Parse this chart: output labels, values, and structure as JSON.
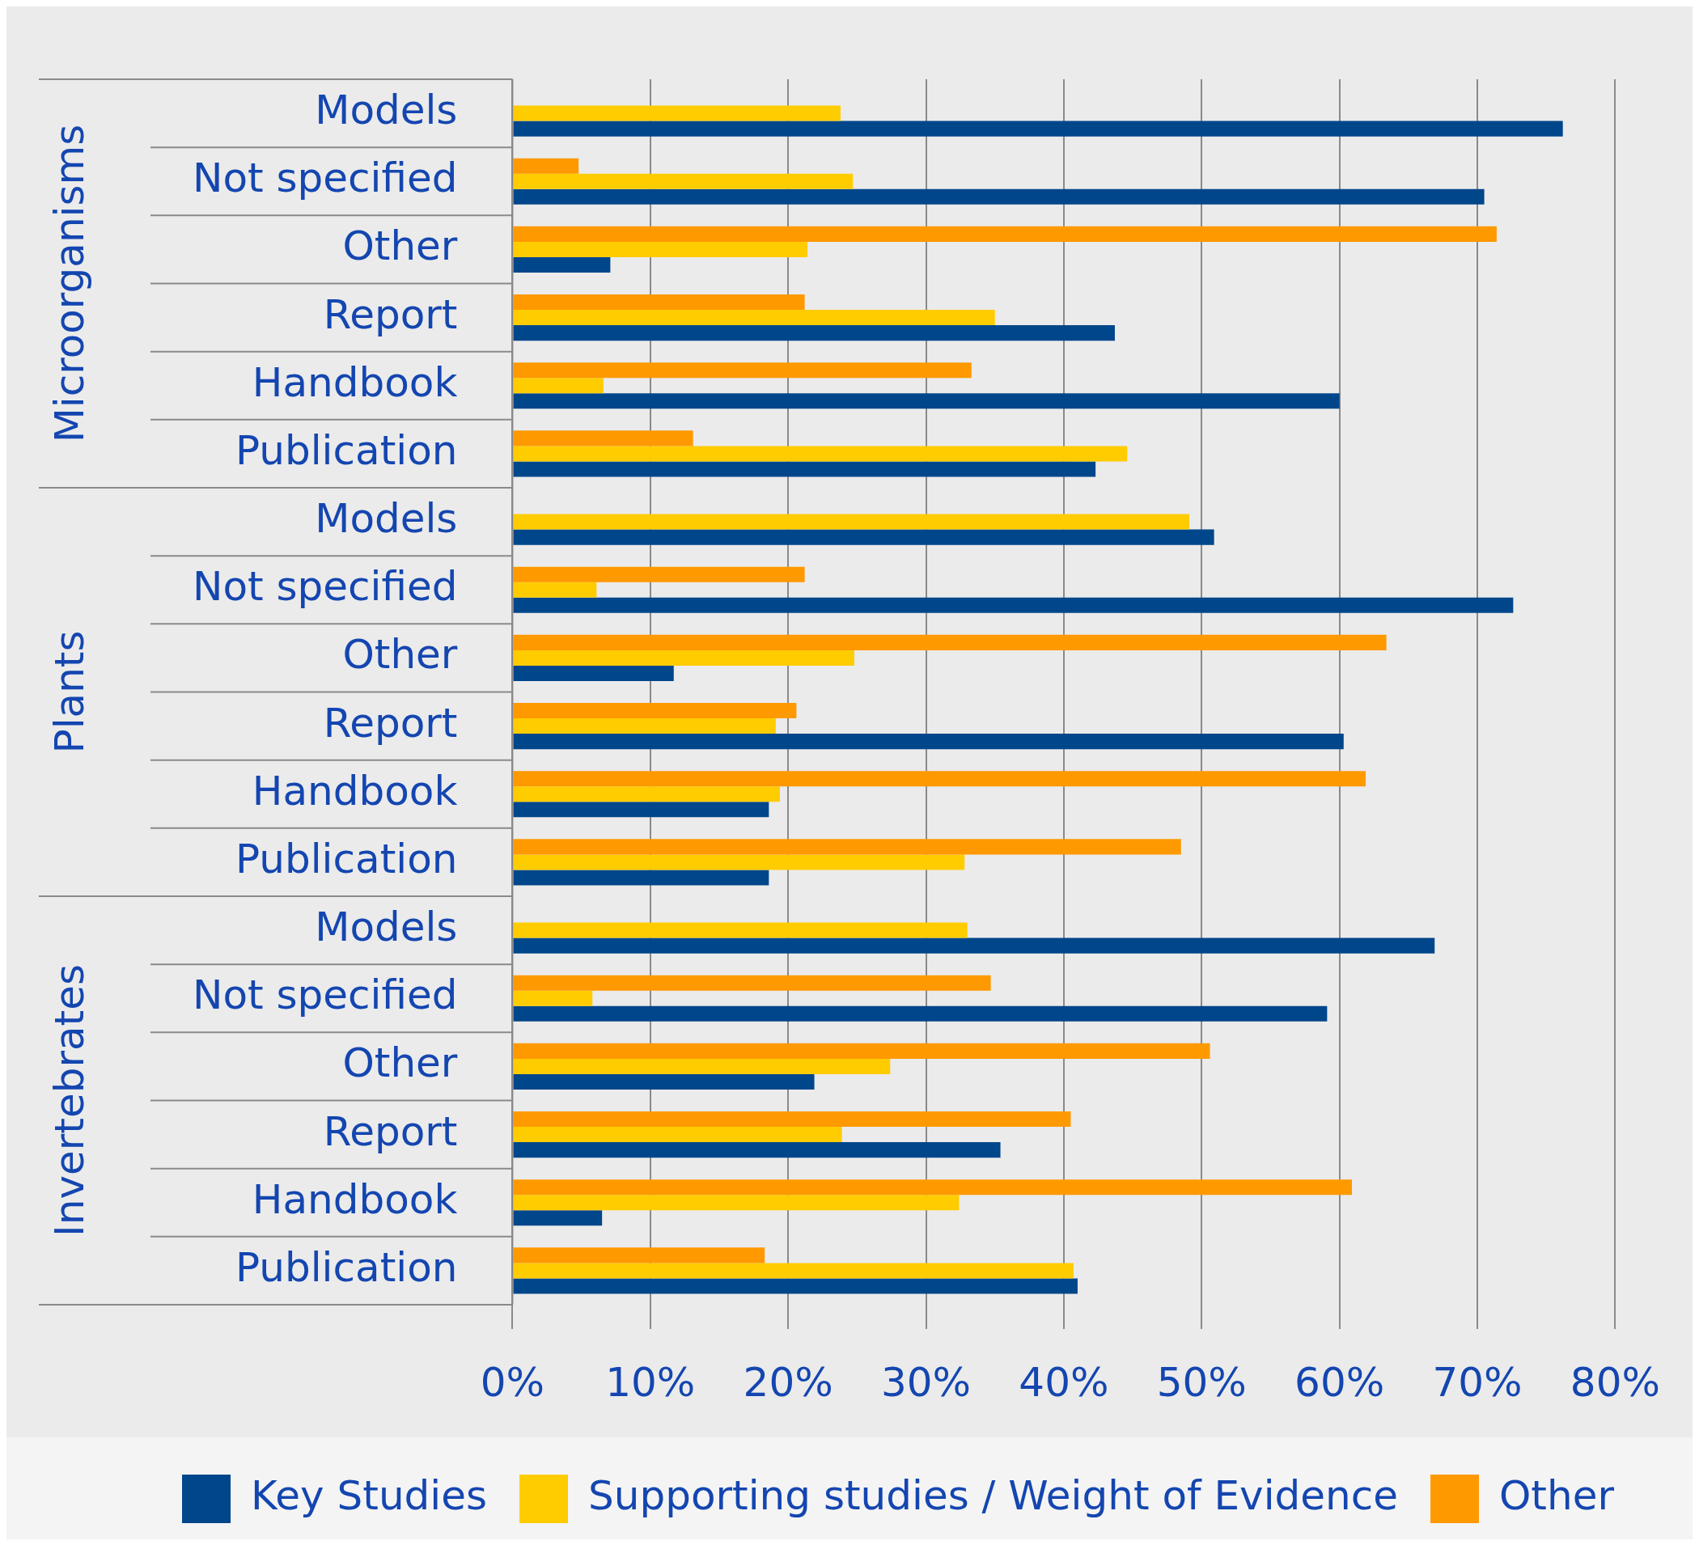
{
  "chart_data": {
    "type": "bar",
    "orientation": "horizontal",
    "categories": [
      "Models",
      "Not specified",
      "Other",
      "Report",
      "Handbook",
      "Publication",
      "Models",
      "Not specified",
      "Other",
      "Report",
      "Handbook",
      "Publication",
      "Models",
      "Not specified",
      "Other",
      "Report",
      "Handbook",
      "Publication"
    ],
    "series": [
      {
        "name": "Key Studies",
        "color": "#00468b",
        "values": [
          76.2,
          70.5,
          7.1,
          43.7,
          60.0,
          42.3,
          50.9,
          72.6,
          11.7,
          60.3,
          18.6,
          18.6,
          66.9,
          59.1,
          21.9,
          35.4,
          6.5,
          41.0
        ]
      },
      {
        "name": "Supporting studies / Weight of Evidence",
        "color": "#ffcc00",
        "values": [
          23.8,
          24.7,
          21.4,
          35.0,
          6.6,
          44.6,
          49.1,
          6.1,
          24.8,
          19.1,
          19.4,
          32.8,
          33.0,
          5.8,
          27.4,
          23.9,
          32.4,
          40.7
        ]
      },
      {
        "name": "Other",
        "color": "#ff9900",
        "values": [
          null,
          4.8,
          71.4,
          21.2,
          33.3,
          13.1,
          null,
          21.2,
          63.4,
          20.6,
          61.9,
          48.5,
          null,
          34.7,
          50.6,
          40.5,
          60.9,
          18.3
        ]
      }
    ],
    "xlim": [
      0,
      80
    ],
    "xticks": [
      {
        "value": 0,
        "label": "0%"
      },
      {
        "value": 10,
        "label": "10%"
      },
      {
        "value": 20,
        "label": "20%"
      },
      {
        "value": 30,
        "label": "30%"
      },
      {
        "value": 40,
        "label": "40%"
      },
      {
        "value": 50,
        "label": "50%"
      },
      {
        "value": 60,
        "label": "60%"
      },
      {
        "value": 70,
        "label": "70%"
      },
      {
        "value": 80,
        "label": "80%"
      }
    ],
    "grid": "x",
    "legend": "bottom",
    "annotations": [
      "Microorganisms",
      "Plants",
      "Invertebrates"
    ]
  }
}
